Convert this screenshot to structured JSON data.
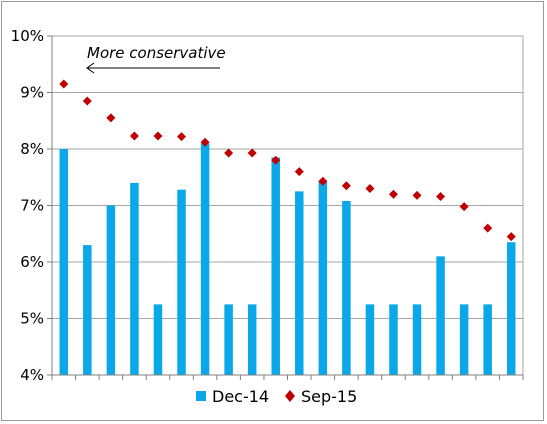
{
  "chart_data": {
    "type": "bar",
    "title": "",
    "xlabel": "",
    "ylabel": "",
    "ylim": [
      4,
      10
    ],
    "yticks": [
      "4%",
      "5%",
      "6%",
      "7%",
      "8%",
      "9%",
      "10%"
    ],
    "grid": true,
    "legend_position": "bottom",
    "annotation": "More conservative",
    "series": [
      {
        "name": "Dec-14",
        "kind": "bar",
        "color": "#0aa8e8",
        "values": [
          8.0,
          6.3,
          7.0,
          7.4,
          5.25,
          7.28,
          8.1,
          5.25,
          5.25,
          7.85,
          7.25,
          7.43,
          7.08,
          5.25,
          5.25,
          5.25,
          6.1,
          5.25,
          5.25,
          6.35
        ]
      },
      {
        "name": "Sep-15",
        "kind": "scatter",
        "color": "#c00000",
        "marker": "diamond",
        "values": [
          9.15,
          8.85,
          8.55,
          8.23,
          8.23,
          8.22,
          8.12,
          7.93,
          7.93,
          7.8,
          7.6,
          7.43,
          7.35,
          7.3,
          7.2,
          7.18,
          7.16,
          6.98,
          6.6,
          6.45
        ]
      }
    ]
  }
}
